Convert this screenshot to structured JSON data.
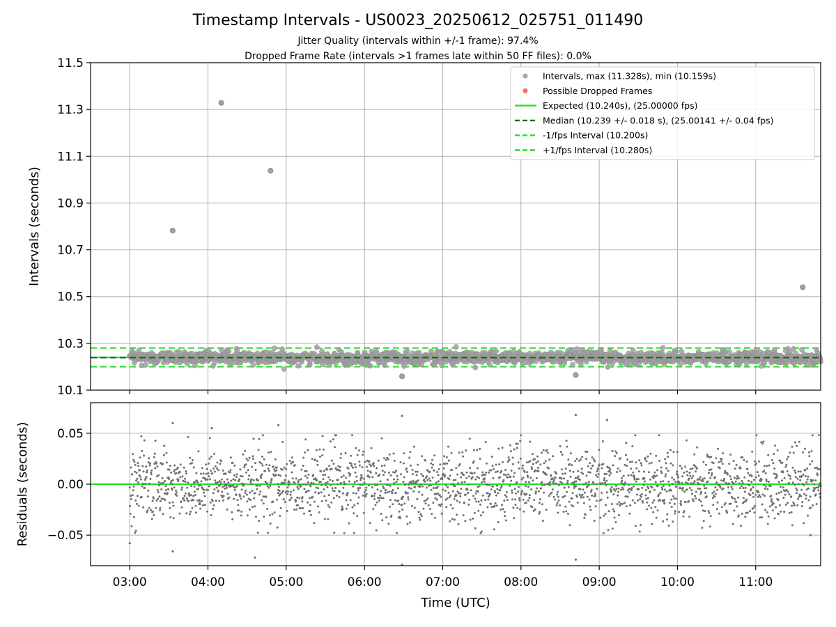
{
  "figure": {
    "title": "Timestamp Intervals - US0023_20250612_025751_011490",
    "subtitle_1": "Jitter Quality (intervals within +/-1 frame): 97.4%",
    "subtitle_2": "Dropped Frame Rate (intervals >1 frames late within 50 FF files): 0.0%"
  },
  "chart_data": [
    {
      "type": "scatter",
      "panel": "top",
      "ylabel": "Intervals (seconds)",
      "xlabel": "",
      "xlim_hours": [
        2.5,
        11.83
      ],
      "ylim": [
        10.1,
        11.5
      ],
      "yticks": [
        10.1,
        10.3,
        10.5,
        10.7,
        10.9,
        11.1,
        11.3,
        11.5
      ],
      "ytick_labels": [
        "10.1",
        "10.3",
        "10.5",
        "10.7",
        "10.9",
        "11.1",
        "11.3",
        "11.5"
      ],
      "grid": true,
      "legend_position": "top-right",
      "legend": [
        {
          "label": "Intervals, max (11.328s), min (10.159s)",
          "kind": "marker",
          "color": "#a0a0a0"
        },
        {
          "label": "Possible Dropped Frames",
          "kind": "marker",
          "color": "#f06060"
        },
        {
          "label": "Expected (10.240s), (25.00000 fps)",
          "kind": "line",
          "color": "#22e022",
          "dash": "solid"
        },
        {
          "label": "Median (10.239 +/- 0.018 s), (25.00141 +/- 0.04 fps)",
          "kind": "line",
          "color": "#0a6e0a",
          "dash": "dashed"
        },
        {
          "label": "-1/fps Interval (10.200s)",
          "kind": "line",
          "color": "#22e022",
          "dash": "dashed"
        },
        {
          "label": "+1/fps Interval (10.280s)",
          "kind": "line",
          "color": "#22e022",
          "dash": "dashed"
        }
      ],
      "reference_lines": {
        "expected": 10.24,
        "median": 10.239,
        "minus_one_frame": 10.2,
        "plus_one_frame": 10.28
      },
      "series": [
        {
          "name": "Intervals, max (11.328s), min (10.159s)",
          "color": "#a0a0a0",
          "x_start_hours": 3.0,
          "x_end_hours": 11.83,
          "center": 10.239,
          "spread_sd": 0.018,
          "outliers": [
            {
              "x": 3.55,
              "y": 10.782
            },
            {
              "x": 4.17,
              "y": 11.328
            },
            {
              "x": 4.8,
              "y": 11.038
            },
            {
              "x": 11.6,
              "y": 10.54
            },
            {
              "x": 6.48,
              "y": 10.159
            },
            {
              "x": 8.7,
              "y": 10.165
            }
          ]
        }
      ]
    },
    {
      "type": "scatter",
      "panel": "bottom",
      "ylabel": "Residuals (seconds)",
      "xlabel": "Time (UTC)",
      "xlim_hours": [
        2.5,
        11.83
      ],
      "ylim": [
        -0.08,
        0.08
      ],
      "yticks": [
        -0.05,
        0.0,
        0.05
      ],
      "ytick_labels": [
        "−0.05",
        "0.00",
        "0.05"
      ],
      "xticks_hours": [
        3,
        4,
        5,
        6,
        7,
        8,
        9,
        10,
        11
      ],
      "xtick_labels": [
        "03:00",
        "04:00",
        "05:00",
        "06:00",
        "07:00",
        "08:00",
        "09:00",
        "10:00",
        "11:00"
      ],
      "grid": true,
      "zero_line_color": "#22e022",
      "series": [
        {
          "name": "",
          "color": "#707070",
          "x_start_hours": 3.0,
          "x_end_hours": 11.83,
          "center": 0.0,
          "spread_sd": 0.018,
          "outliers": [
            {
              "x": 3.55,
              "y": 0.06
            },
            {
              "x": 4.05,
              "y": 0.055
            },
            {
              "x": 4.9,
              "y": 0.058
            },
            {
              "x": 6.48,
              "y": 0.067
            },
            {
              "x": 8.7,
              "y": 0.068
            },
            {
              "x": 9.1,
              "y": 0.063
            },
            {
              "x": 3.0,
              "y": -0.058
            },
            {
              "x": 3.55,
              "y": -0.066
            },
            {
              "x": 4.6,
              "y": -0.072
            },
            {
              "x": 8.7,
              "y": -0.074
            },
            {
              "x": 6.48,
              "y": -0.079
            },
            {
              "x": 11.7,
              "y": -0.05
            }
          ]
        }
      ]
    }
  ]
}
